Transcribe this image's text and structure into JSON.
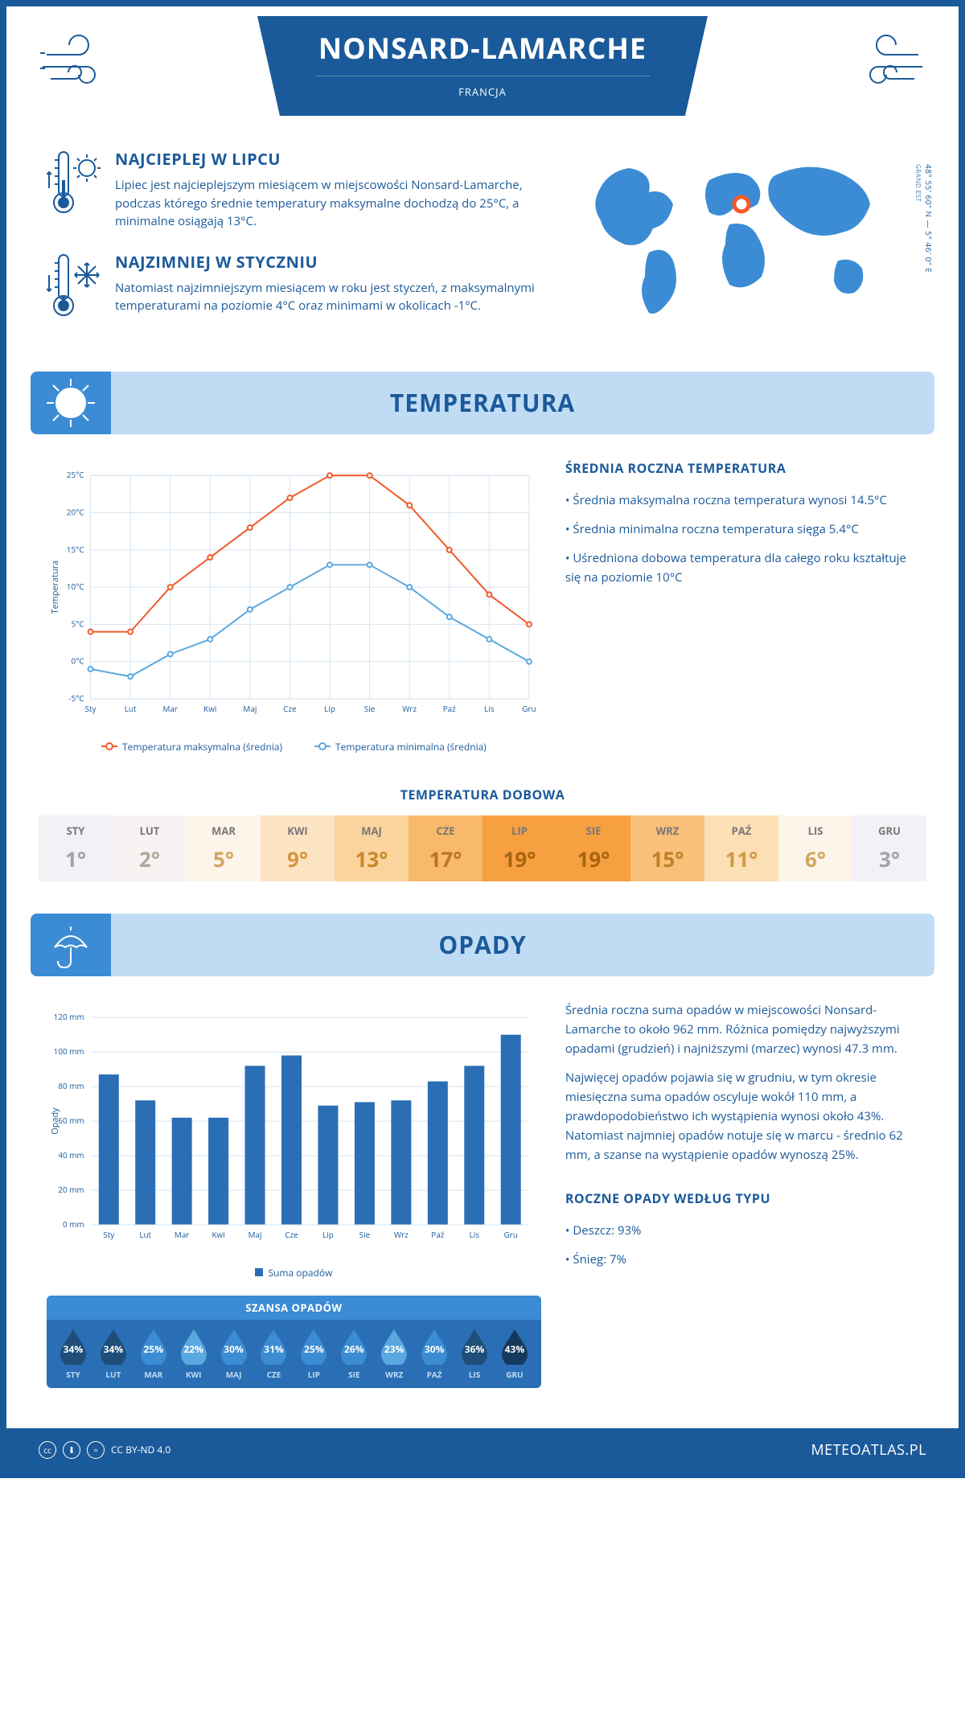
{
  "header": {
    "title": "NONSARD-LAMARCHE",
    "country": "FRANCJA",
    "coords": "48° 55' 60\" N — 5° 46' 0\" E",
    "region": "GRAND EST"
  },
  "intro": {
    "hot": {
      "title": "NAJCIEPLEJ W LIPCU",
      "text": "Lipiec jest najcieplejszym miesiącem w miejscowości Nonsard-Lamarche, podczas którego średnie temperatury maksymalne dochodzą do 25°C, a minimalne osiągają 13°C."
    },
    "cold": {
      "title": "NAJZIMNIEJ W STYCZNIU",
      "text": "Natomiast najzimniejszym miesiącem w roku jest styczeń, z maksymalnymi temperaturami na poziomie 4°C oraz minimami w okolicach -1°C."
    }
  },
  "temp_section": {
    "title": "TEMPERATURA",
    "sidebar_title": "ŚREDNIA ROCZNA TEMPERATURA",
    "bullets": [
      "• Średnia maksymalna roczna temperatura wynosi 14.5°C",
      "• Średnia minimalna roczna temperatura sięga 5.4°C",
      "• Uśredniona dobowa temperatura dla całego roku kształtuje się na poziomie 10°C"
    ],
    "chart": {
      "type": "line",
      "months": [
        "Sty",
        "Lut",
        "Mar",
        "Kwi",
        "Maj",
        "Cze",
        "Lip",
        "Sie",
        "Wrz",
        "Paź",
        "Lis",
        "Gru"
      ],
      "max_series": {
        "label": "Temperatura maksymalna (średnia)",
        "color": "#f15a29",
        "values": [
          4,
          4,
          10,
          14,
          18,
          22,
          25,
          25,
          21,
          15,
          9,
          5
        ]
      },
      "min_series": {
        "label": "Temperatura minimalna (średnia)",
        "color": "#5aa8e0",
        "values": [
          -1,
          -2,
          1,
          3,
          7,
          10,
          13,
          13,
          10,
          6,
          3,
          0
        ]
      },
      "ylim": [
        -5,
        25
      ],
      "ytick_step": 5,
      "yunit": "°C",
      "ytitle": "Temperatura",
      "grid_color": "#d5e5f2",
      "line_width": 2,
      "marker_radius": 3
    },
    "legend_max": "Temperatura maksymalna (średnia)",
    "legend_min": "Temperatura minimalna (średnia)",
    "daily_title": "TEMPERATURA DOBOWA",
    "daily": {
      "months": [
        "STY",
        "LUT",
        "MAR",
        "KWI",
        "MAJ",
        "CZE",
        "LIP",
        "SIE",
        "WRZ",
        "PAŹ",
        "LIS",
        "GRU"
      ],
      "values": [
        "1°",
        "2°",
        "5°",
        "9°",
        "13°",
        "17°",
        "19°",
        "19°",
        "15°",
        "11°",
        "6°",
        "3°"
      ],
      "bg_colors": [
        "#f3f1f6",
        "#f6f3f2",
        "#fdf4ea",
        "#fce3c2",
        "#fbd39c",
        "#f8b96b",
        "#f6a040",
        "#f6a040",
        "#f8c078",
        "#fcdfb5",
        "#fdf4ea",
        "#f3f1f6"
      ],
      "text_colors": [
        "#a4a0b0",
        "#b2a89b",
        "#d2a662",
        "#d49640",
        "#c8862c",
        "#b87620",
        "#a86410",
        "#a86410",
        "#c08028",
        "#d09848",
        "#d2a662",
        "#a4a0b0"
      ]
    }
  },
  "precip_section": {
    "title": "OPADY",
    "para1": "Średnia roczna suma opadów w miejscowości Nonsard-Lamarche to około 962 mm. Różnica pomiędzy najwyższymi opadami (grudzień) i najniższymi (marzec) wynosi 47.3 mm.",
    "para2": "Najwięcej opadów pojawia się w grudniu, w tym okresie miesięczna suma opadów oscyluje wokół 110 mm, a prawdopodobieństwo ich wystąpienia wynosi około 43%. Natomiast najmniej opadów notuje się w marcu - średnio 62 mm, a szanse na wystąpienie opadów wynoszą 25%.",
    "chart": {
      "type": "bar",
      "months": [
        "Sty",
        "Lut",
        "Mar",
        "Kwi",
        "Maj",
        "Cze",
        "Lip",
        "Sie",
        "Wrz",
        "Paź",
        "Lis",
        "Gru"
      ],
      "values": [
        87,
        72,
        62,
        62,
        92,
        98,
        69,
        71,
        72,
        83,
        92,
        110
      ],
      "bar_color": "#2a6eb5",
      "ylim": [
        0,
        120
      ],
      "ytick_step": 20,
      "yunit": " mm",
      "ytitle": "Opady",
      "grid_color": "#d5e5f2",
      "bar_width_ratio": 0.55,
      "legend": "Suma opadów"
    },
    "chance": {
      "title": "SZANSA OPADÓW",
      "months": [
        "STY",
        "LUT",
        "MAR",
        "KWI",
        "MAJ",
        "CZE",
        "LIP",
        "SIE",
        "WRZ",
        "PAŹ",
        "LIS",
        "GRU"
      ],
      "values": [
        "34%",
        "34%",
        "25%",
        "22%",
        "30%",
        "31%",
        "25%",
        "26%",
        "23%",
        "30%",
        "36%",
        "43%"
      ],
      "drop_colors": [
        "#1f4e7a",
        "#1f4e7a",
        "#3b8cd4",
        "#5aa8e0",
        "#3b8cd4",
        "#3b8cd4",
        "#3b8cd4",
        "#3b8cd4",
        "#5aa8e0",
        "#3b8cd4",
        "#1f4e7a",
        "#15395c"
      ]
    },
    "type_title": "ROCZNE OPADY WEDŁUG TYPU",
    "type_bullets": [
      "• Deszcz: 93%",
      "• Śnieg: 7%"
    ]
  },
  "footer": {
    "license": "CC BY-ND 4.0",
    "brand": "METEOATLAS.PL"
  },
  "colors": {
    "primary": "#1b5a9a",
    "light": "#c0dcf4",
    "accent": "#3b8cd4"
  }
}
